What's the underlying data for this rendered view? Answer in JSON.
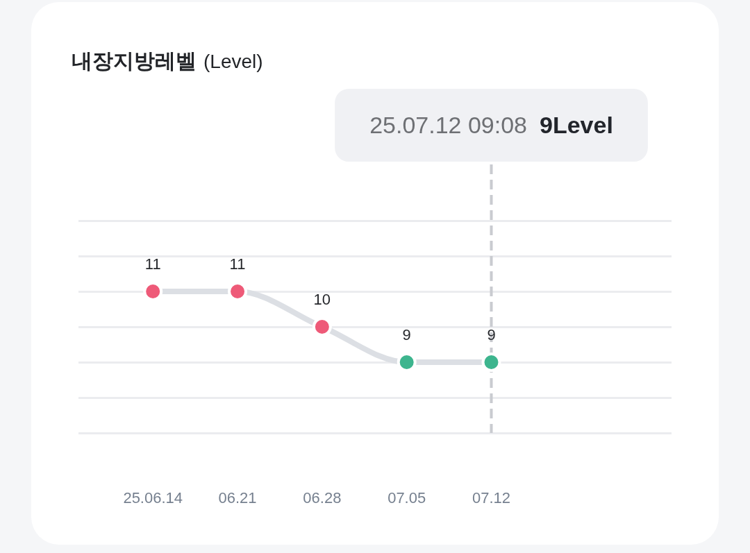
{
  "chart_data": {
    "type": "line",
    "title": "내장지방레벨",
    "subtitle": "(Level)",
    "categories": [
      "25.06.14",
      "06.21",
      "06.28",
      "07.05",
      "07.12"
    ],
    "values": [
      11,
      11,
      10,
      9,
      9
    ],
    "color": "#dcdfe4",
    "colors": [
      "#ee5a78",
      "#ee5a78",
      "#ee5a78",
      "#3db58e",
      "#3db58e"
    ],
    "ylim": [
      7,
      13
    ],
    "yticks": [
      {
        "value": 7,
        "label": null
      },
      {
        "value": 8,
        "label": null
      },
      {
        "value": 9,
        "label": null
      },
      {
        "value": 10,
        "label": null
      },
      {
        "value": 11,
        "label": null
      },
      {
        "value": 12,
        "label": null
      },
      {
        "value": 13,
        "label": null
      }
    ],
    "grid": "y",
    "tick_labels": "x",
    "marker": "circle",
    "line_style": "solid",
    "data_labels": true,
    "ref_lines": [
      {
        "axis": "x",
        "value": "07.12",
        "label": "25.07.12 09:08",
        "color": "#c9cbd0",
        "line_style": "dashed"
      }
    ],
    "annotations": [
      "9Level"
    ]
  }
}
